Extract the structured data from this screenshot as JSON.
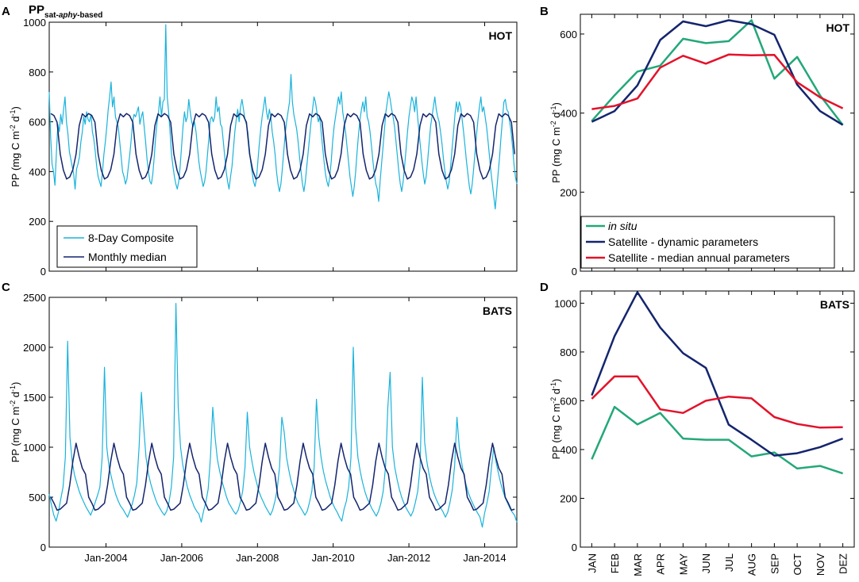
{
  "figure": {
    "panel_labels": [
      "A",
      "B",
      "C",
      "D"
    ],
    "title_main": "PP",
    "title_sub_1": "sat-",
    "title_sub_2": "aphy",
    "title_sub_3": "-based",
    "ylabel": {
      "pre": "PP (mg C m",
      "exp1": "-2",
      "mid": " d",
      "exp2": "-1",
      "post": ")"
    }
  },
  "colors": {
    "composite": "#1ab3dc",
    "monthly": "#14256e",
    "insitu": "#23a878",
    "dynamic": "#14256e",
    "median": "#e3122a"
  },
  "chart_data": [
    {
      "id": "A",
      "type": "line",
      "site": "HOT",
      "xlim": [
        2002.5,
        2014.85
      ],
      "ylim": [
        0,
        1000
      ],
      "yticks": [
        0,
        200,
        400,
        600,
        800,
        1000
      ],
      "xticks": [
        {
          "value": 2004.0,
          "label": "Jan-2004"
        },
        {
          "value": 2006.0,
          "label": "Jan-2006"
        },
        {
          "value": 2008.0,
          "label": "Jan-2008"
        },
        {
          "value": 2010.0,
          "label": "Jan-2010"
        },
        {
          "value": 2012.0,
          "label": "Jan-2012"
        },
        {
          "value": 2014.0,
          "label": "Jan-2014"
        }
      ],
      "legend": {
        "position": "bottom-left",
        "entries": [
          "8-Day Composite",
          "Monthly median"
        ]
      },
      "monthly_climatology": [
        378,
        408,
        470,
        585,
        632,
        620,
        633,
        625,
        598,
        470,
        405,
        370
      ],
      "series": [
        {
          "name": "8-Day Composite",
          "values": [
            720,
            540,
            430,
            400,
            345,
            480,
            590,
            560,
            630,
            590,
            650,
            700,
            600,
            550,
            480,
            450,
            420,
            390,
            330,
            410,
            430,
            460,
            520,
            560,
            620,
            590,
            640,
            610,
            600,
            630,
            560,
            530,
            480,
            420,
            380,
            360,
            340,
            400,
            470,
            520,
            580,
            650,
            700,
            760,
            660,
            700,
            620,
            600,
            580,
            520,
            460,
            400,
            380,
            350,
            370,
            420,
            470,
            530,
            600,
            630,
            620,
            640,
            660,
            590,
            620,
            640,
            580,
            520,
            450,
            400,
            360,
            350,
            390,
            460,
            540,
            600,
            640,
            700,
            620,
            680,
            690,
            990,
            700,
            640,
            560,
            470,
            420,
            380,
            350,
            330,
            360,
            420,
            500,
            580,
            640,
            600,
            620,
            690,
            640,
            600,
            580,
            600,
            560,
            500,
            440,
            400,
            370,
            340,
            360,
            400,
            470,
            540,
            610,
            620,
            600,
            620,
            700,
            640,
            660,
            590,
            580,
            520,
            460,
            400,
            360,
            330,
            380,
            420,
            490,
            560,
            610,
            650,
            600,
            660,
            690,
            650,
            610,
            590,
            560,
            500,
            440,
            400,
            360,
            340,
            370,
            440,
            510,
            570,
            620,
            660,
            700,
            640,
            610,
            650,
            620,
            560,
            520,
            470,
            400,
            350,
            320,
            350,
            410,
            480,
            550,
            600,
            640,
            680,
            790,
            680,
            630,
            600,
            570,
            520,
            460,
            400,
            350,
            320,
            360,
            420,
            480,
            540,
            600,
            650,
            700,
            680,
            640,
            600,
            620,
            560,
            500,
            440,
            390,
            360,
            340,
            380,
            440,
            520,
            580,
            620,
            660,
            700,
            670,
            720,
            640,
            600,
            560,
            500,
            440,
            380,
            340,
            300,
            340,
            400,
            480,
            550,
            610,
            650,
            680,
            640,
            700,
            620,
            600,
            560,
            500,
            440,
            390,
            350,
            330,
            280,
            360,
            430,
            500,
            570,
            640,
            680,
            720,
            690,
            650,
            620,
            580,
            520,
            460,
            400,
            350,
            320,
            360,
            420,
            490,
            560,
            620,
            660,
            700,
            680,
            640,
            700,
            620,
            560,
            500,
            440,
            390,
            350,
            380,
            440,
            510,
            580,
            620,
            660,
            700,
            650,
            620,
            600,
            560,
            510,
            450,
            400,
            360,
            330,
            360,
            420,
            490,
            560,
            630,
            680,
            640,
            680,
            660,
            610,
            560,
            500,
            440,
            390,
            340,
            310,
            350,
            410,
            480,
            550,
            610,
            660,
            700,
            640,
            660,
            620,
            580,
            520,
            460,
            400,
            350,
            300,
            250,
            320,
            390,
            460,
            540,
            610,
            680,
            690,
            650,
            640,
            600,
            560,
            500,
            430,
            380,
            350
          ]
        }
      ]
    },
    {
      "id": "B",
      "type": "line",
      "site": "HOT",
      "categories": [
        "JAN",
        "FEB",
        "MAR",
        "APR",
        "MAY",
        "JUN",
        "JUL",
        "AUG",
        "SEP",
        "OCT",
        "NOV",
        "DEZ"
      ],
      "ylim": [
        0,
        650
      ],
      "yticks": [
        0,
        200,
        400,
        600
      ],
      "legend": {
        "position": "bottom-left"
      },
      "series": [
        {
          "name": "in situ",
          "values": [
            380,
            445,
            505,
            520,
            588,
            577,
            582,
            635,
            487,
            542,
            445,
            370
          ]
        },
        {
          "name": "Satellite - dynamic parameters",
          "values": [
            378,
            405,
            470,
            585,
            632,
            620,
            635,
            625,
            598,
            472,
            405,
            370
          ]
        },
        {
          "name": "Satellite - median annual parameters",
          "values": [
            410,
            418,
            437,
            515,
            545,
            525,
            548,
            546,
            547,
            478,
            440,
            412
          ]
        }
      ]
    },
    {
      "id": "C",
      "type": "line",
      "site": "BATS",
      "xlim": [
        2002.5,
        2014.85
      ],
      "ylim": [
        0,
        2500
      ],
      "yticks": [
        0,
        500,
        1000,
        1500,
        2000,
        2500
      ],
      "xticks": [
        {
          "value": 2004.0,
          "label": "Jan-2004"
        },
        {
          "value": 2006.0,
          "label": "Jan-2006"
        },
        {
          "value": 2008.0,
          "label": "Jan-2008"
        },
        {
          "value": 2010.0,
          "label": "Jan-2010"
        },
        {
          "value": 2012.0,
          "label": "Jan-2012"
        },
        {
          "value": 2014.0,
          "label": "Jan-2014"
        }
      ],
      "monthly_climatology": [
        620,
        860,
        1040,
        900,
        790,
        730,
        500,
        440,
        370,
        380,
        410,
        440
      ],
      "series": [
        {
          "name": "8-Day Composite",
          "values": [
            530,
            420,
            320,
            260,
            350,
            480,
            600,
            900,
            2060,
            1100,
            850,
            720,
            640,
            560,
            500,
            450,
            400,
            360,
            320,
            380,
            450,
            520,
            600,
            900,
            1800,
            1000,
            800,
            700,
            600,
            520,
            460,
            410,
            380,
            340,
            300,
            360,
            430,
            520,
            640,
            1000,
            1550,
            1200,
            900,
            740,
            640,
            560,
            490,
            430,
            390,
            350,
            320,
            360,
            450,
            600,
            900,
            2440,
            1400,
            1000,
            820,
            700,
            600,
            520,
            460,
            400,
            360,
            330,
            250,
            360,
            450,
            580,
            900,
            1400,
            1100,
            880,
            760,
            660,
            580,
            500,
            440,
            400,
            360,
            330,
            370,
            450,
            560,
            800,
            1350,
            1000,
            860,
            740,
            650,
            560,
            500,
            450,
            400,
            360,
            320,
            370,
            460,
            580,
            800,
            1300,
            1150,
            900,
            770,
            660,
            580,
            500,
            440,
            400,
            360,
            320,
            360,
            450,
            560,
            800,
            1480,
            1100,
            900,
            760,
            660,
            580,
            500,
            440,
            390,
            350,
            300,
            260,
            380,
            460,
            600,
            900,
            2000,
            1200,
            900,
            760,
            650,
            560,
            490,
            440,
            390,
            350,
            310,
            360,
            440,
            560,
            800,
            1400,
            1750,
            1000,
            800,
            680,
            580,
            500,
            440,
            390,
            350,
            310,
            360,
            450,
            560,
            800,
            1700,
            1050,
            850,
            720,
            620,
            540,
            480,
            430,
            390,
            350,
            300,
            350,
            450,
            580,
            820,
            1300,
            1000,
            850,
            720,
            620,
            540,
            480,
            430,
            380,
            340,
            300,
            200,
            340,
            440,
            560,
            800,
            1000,
            850,
            740,
            640,
            560,
            490,
            440,
            390,
            350,
            320,
            250
          ]
        }
      ]
    },
    {
      "id": "D",
      "type": "line",
      "site": "BATS",
      "categories": [
        "JAN",
        "FEB",
        "MAR",
        "APR",
        "MAY",
        "JUN",
        "JUL",
        "AUG",
        "SEP",
        "OCT",
        "NOV",
        "DEZ"
      ],
      "ylim": [
        0,
        1050
      ],
      "yticks": [
        0,
        200,
        400,
        600,
        800,
        1000
      ],
      "series": [
        {
          "name": "in situ",
          "values": [
            360,
            575,
            503,
            550,
            445,
            440,
            440,
            372,
            388,
            322,
            333,
            302
          ]
        },
        {
          "name": "Satellite - dynamic parameters",
          "values": [
            622,
            865,
            1045,
            900,
            795,
            735,
            502,
            440,
            375,
            385,
            410,
            445
          ]
        },
        {
          "name": "Satellite - median annual parameters",
          "values": [
            608,
            700,
            700,
            565,
            550,
            600,
            617,
            610,
            533,
            505,
            490,
            492
          ]
        }
      ]
    }
  ]
}
